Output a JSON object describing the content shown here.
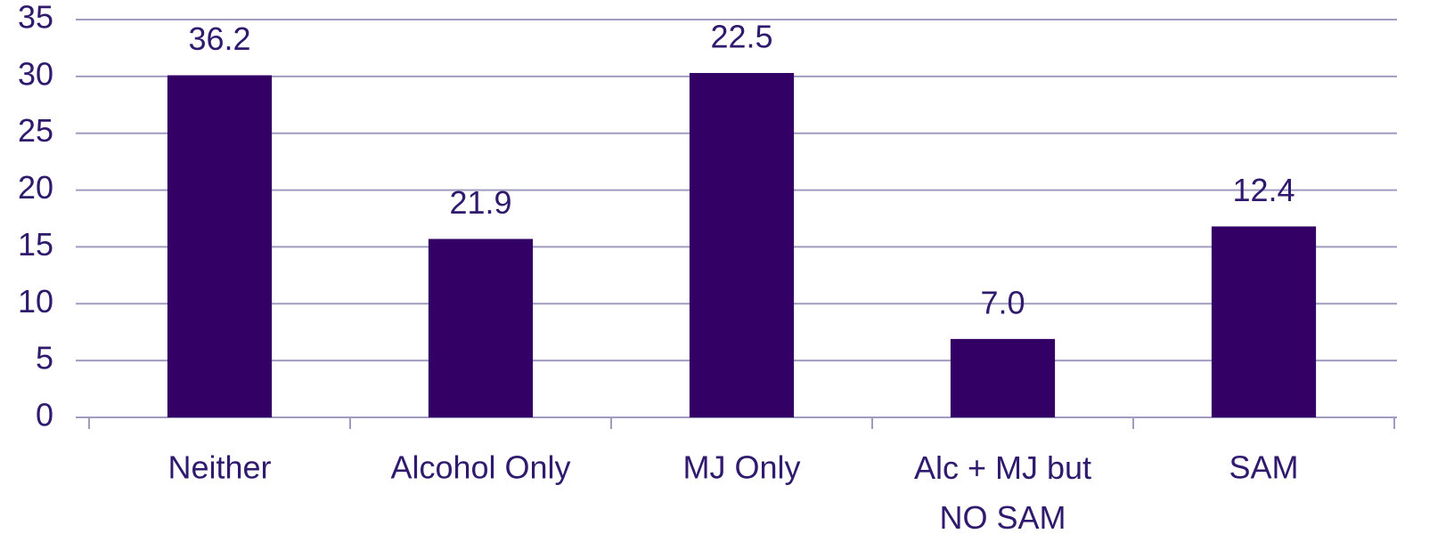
{
  "chart_data": {
    "type": "bar",
    "categories": [
      "Neither",
      "Alcohol Only",
      "MJ Only",
      "Alc + MJ but\nNO SAM",
      "SAM"
    ],
    "values": [
      30.1,
      15.7,
      30.3,
      6.9,
      16.8
    ],
    "annotations": [
      "36.2",
      "21.9",
      "22.5",
      "7.0",
      "12.4"
    ],
    "color": "#330066",
    "ylim": [
      0,
      35
    ],
    "yticks": [
      0,
      5,
      10,
      15,
      20,
      25,
      30,
      35
    ],
    "grid": true
  }
}
